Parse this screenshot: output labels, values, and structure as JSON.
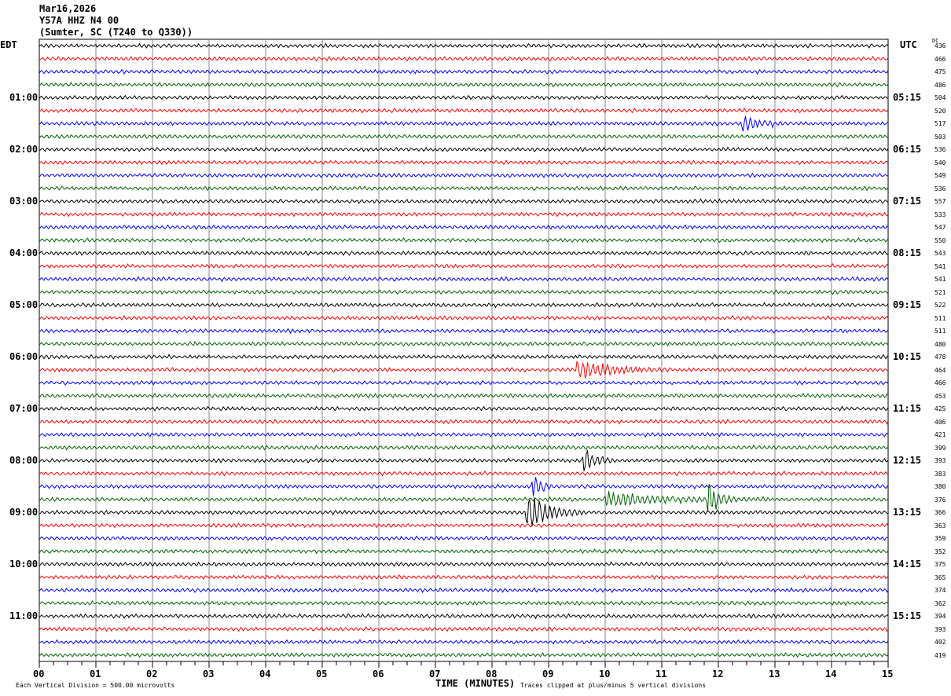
{
  "header": {
    "date": "Mar16,2026",
    "station": "Y57A HHZ N4 00",
    "location": "(Sumter, SC (T240 to Q330))"
  },
  "left_axis_label": "EDT",
  "right_axis_label": "UTC",
  "dc_label": "DC",
  "footer": {
    "scale": "Each Vertical Division =  500.00 microvolts",
    "xlabel": "TIME (MINUTES)",
    "clip_note": "Traces clipped at plus/minus 5 vertical divisions"
  },
  "chart_data": {
    "type": "line",
    "title": "Y57A HHZ N4 00 helicorder",
    "xlabel": "TIME (MINUTES)",
    "xlim": [
      0,
      15
    ],
    "x_ticks": [
      "00",
      "01",
      "02",
      "03",
      "04",
      "05",
      "06",
      "07",
      "08",
      "09",
      "10",
      "11",
      "12",
      "13",
      "14",
      "15"
    ],
    "trace_colors": [
      "#000000",
      "#ff0000",
      "#0000ff",
      "#006400"
    ],
    "edt_labels": [
      "01:00",
      "02:00",
      "03:00",
      "04:00",
      "05:00",
      "06:00",
      "07:00",
      "08:00",
      "09:00",
      "10:00",
      "11:00"
    ],
    "utc_labels": [
      "05:15",
      "06:15",
      "07:15",
      "08:15",
      "09:15",
      "10:15",
      "11:15",
      "12:15",
      "13:15",
      "14:15",
      "15:15"
    ],
    "dc_offsets": [
      436,
      466,
      475,
      486,
      504,
      520,
      517,
      503,
      536,
      540,
      549,
      536,
      557,
      533,
      547,
      550,
      543,
      541,
      541,
      521,
      522,
      511,
      511,
      480,
      478,
      464,
      466,
      453,
      425,
      406,
      421,
      399,
      393,
      383,
      380,
      376,
      366,
      363,
      359,
      352,
      375,
      365,
      374,
      362,
      394,
      393,
      402,
      419
    ],
    "events": [
      {
        "trace": 6,
        "start_min": 12.4,
        "end_min": 13.3,
        "amplitude": 2.2
      },
      {
        "trace": 25,
        "start_min": 9.5,
        "end_min": 11.2,
        "amplitude": 2.5
      },
      {
        "trace": 32,
        "start_min": 9.6,
        "end_min": 10.2,
        "amplitude": 3.5
      },
      {
        "trace": 34,
        "start_min": 8.7,
        "end_min": 9.1,
        "amplitude": 4
      },
      {
        "trace": 35,
        "start_min": 10.0,
        "end_min": 12.8,
        "amplitude": 1.8
      },
      {
        "trace": 35,
        "start_min": 11.8,
        "end_min": 12.2,
        "amplitude": 6
      },
      {
        "trace": 36,
        "start_min": 8.6,
        "end_min": 9.6,
        "amplitude": 5
      }
    ]
  }
}
